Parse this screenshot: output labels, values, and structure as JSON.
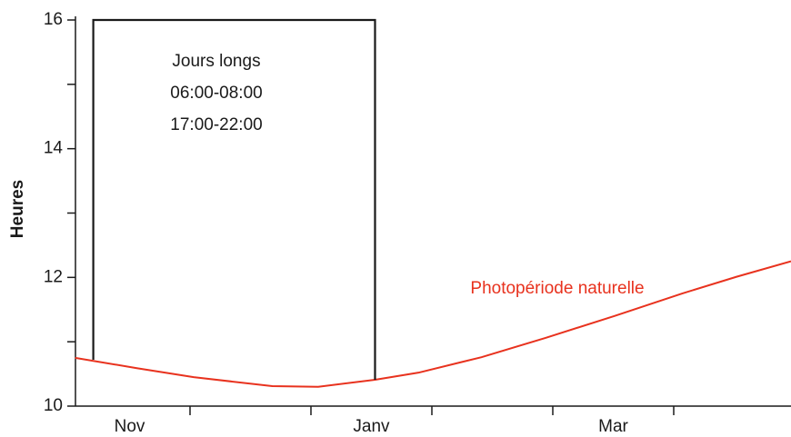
{
  "chart_data": {
    "type": "line",
    "ylabel": "Heures",
    "categories": [
      "Nov",
      null,
      "Janv",
      null,
      "Mar",
      null
    ],
    "ylim": [
      10,
      16
    ],
    "yticks": [
      10,
      12,
      14,
      16
    ],
    "yminorticks": [
      11,
      13,
      15
    ],
    "series": [
      {
        "name": "Photopériode naturelle",
        "color": "#e8321e",
        "x": [
          -0.45,
          0.06,
          0.53,
          1.18,
          1.56,
          2.03,
          2.39,
          2.91,
          3.44,
          4.01,
          4.57,
          5.02,
          5.47
        ],
        "values": [
          10.75,
          10.59,
          10.45,
          10.31,
          10.3,
          10.41,
          10.52,
          10.76,
          11.06,
          11.4,
          11.75,
          12.01,
          12.25
        ]
      },
      {
        "color": "#1a1a1a",
        "x": [
          -0.3,
          -0.3,
          2.03,
          2.03
        ],
        "values": [
          10.72,
          16,
          16,
          10.41
        ]
      }
    ],
    "annotations": [
      "Jours longs",
      "06:00-08:00",
      "17:00-22:00"
    ]
  }
}
